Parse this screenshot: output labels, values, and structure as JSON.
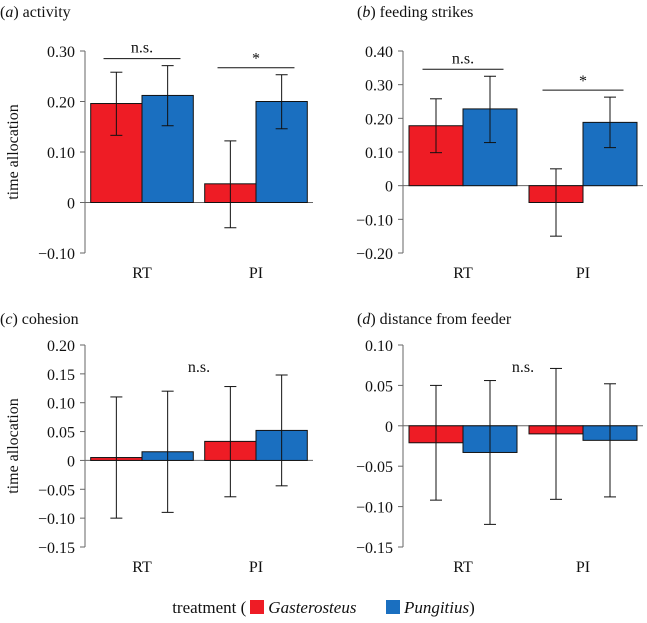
{
  "legend": {
    "prefix": "treatment (",
    "suffix": ")",
    "series": [
      {
        "name": "Gasterosteus",
        "color": "#ee1c25"
      },
      {
        "name": "Pungitius",
        "color": "#1a6fc0"
      }
    ]
  },
  "chart_data": [
    {
      "type": "bar",
      "panel": "(a)",
      "title": "activity",
      "ylabel": "time allocation",
      "categories": [
        "RT",
        "PI"
      ],
      "ylim": [
        -0.1,
        0.3
      ],
      "yticks": [
        -0.1,
        0,
        0.1,
        0.2,
        0.3
      ],
      "ytick_labels": [
        "−0.10",
        "0",
        "0.10",
        "0.20",
        "0.30"
      ],
      "series": [
        {
          "name": "Gasterosteus",
          "values": [
            0.196,
            0.037
          ],
          "err_low": [
            0.133,
            -0.05
          ],
          "err_high": [
            0.258,
            0.122
          ]
        },
        {
          "name": "Pungitius",
          "values": [
            0.212,
            0.2
          ],
          "err_low": [
            0.152,
            0.146
          ],
          "err_high": [
            0.271,
            0.253
          ]
        }
      ],
      "annotations": [
        {
          "category": "RT",
          "text": "n.s.",
          "bracket": true
        },
        {
          "category": "PI",
          "text": "*",
          "bracket": true
        }
      ]
    },
    {
      "type": "bar",
      "panel": "(b)",
      "title": "feeding strikes",
      "ylabel": "",
      "categories": [
        "RT",
        "PI"
      ],
      "ylim": [
        -0.2,
        0.4
      ],
      "yticks": [
        -0.2,
        -0.1,
        0,
        0.1,
        0.2,
        0.3,
        0.4
      ],
      "ytick_labels": [
        "−0.20",
        "−0.10",
        "0",
        "0.10",
        "0.20",
        "0.30",
        "0.40"
      ],
      "series": [
        {
          "name": "Gasterosteus",
          "values": [
            0.178,
            -0.05
          ],
          "err_low": [
            0.098,
            -0.15
          ],
          "err_high": [
            0.258,
            0.05
          ]
        },
        {
          "name": "Pungitius",
          "values": [
            0.228,
            0.188
          ],
          "err_low": [
            0.128,
            0.113
          ],
          "err_high": [
            0.325,
            0.263
          ]
        }
      ],
      "annotations": [
        {
          "category": "RT",
          "text": "n.s.",
          "bracket": true
        },
        {
          "category": "PI",
          "text": "*",
          "bracket": true
        }
      ]
    },
    {
      "type": "bar",
      "panel": "(c)",
      "title": "cohesion",
      "ylabel": "time allocation",
      "categories": [
        "RT",
        "PI"
      ],
      "ylim": [
        -0.15,
        0.2
      ],
      "yticks": [
        -0.15,
        -0.1,
        -0.05,
        0,
        0.05,
        0.1,
        0.15,
        0.2
      ],
      "ytick_labels": [
        "−0.15",
        "−0.10",
        "−0.05",
        "0",
        "0.05",
        "0.10",
        "0.15",
        "0.20"
      ],
      "series": [
        {
          "name": "Gasterosteus",
          "values": [
            0.005,
            0.033
          ],
          "err_low": [
            -0.1,
            -0.063
          ],
          "err_high": [
            0.11,
            0.128
          ]
        },
        {
          "name": "Pungitius",
          "values": [
            0.015,
            0.052
          ],
          "err_low": [
            -0.09,
            -0.044
          ],
          "err_high": [
            0.12,
            0.148
          ]
        }
      ],
      "annotations": [
        {
          "category": "center",
          "text": "n.s.",
          "bracket": false
        }
      ]
    },
    {
      "type": "bar",
      "panel": "(d)",
      "title": "distance from feeder",
      "ylabel": "",
      "categories": [
        "RT",
        "PI"
      ],
      "ylim": [
        -0.15,
        0.1
      ],
      "yticks": [
        -0.15,
        -0.1,
        -0.05,
        0,
        0.05,
        0.1
      ],
      "ytick_labels": [
        "−0.15",
        "−0.10",
        "−0.05",
        "0",
        "0.05",
        "0.10"
      ],
      "series": [
        {
          "name": "Gasterosteus",
          "values": [
            -0.021,
            -0.01
          ],
          "err_low": [
            -0.092,
            -0.091
          ],
          "err_high": [
            0.05,
            0.071
          ]
        },
        {
          "name": "Pungitius",
          "values": [
            -0.033,
            -0.018
          ],
          "err_low": [
            -0.122,
            -0.088
          ],
          "err_high": [
            0.056,
            0.052
          ]
        }
      ],
      "annotations": [
        {
          "category": "center",
          "text": "n.s.",
          "bracket": false
        }
      ]
    }
  ]
}
